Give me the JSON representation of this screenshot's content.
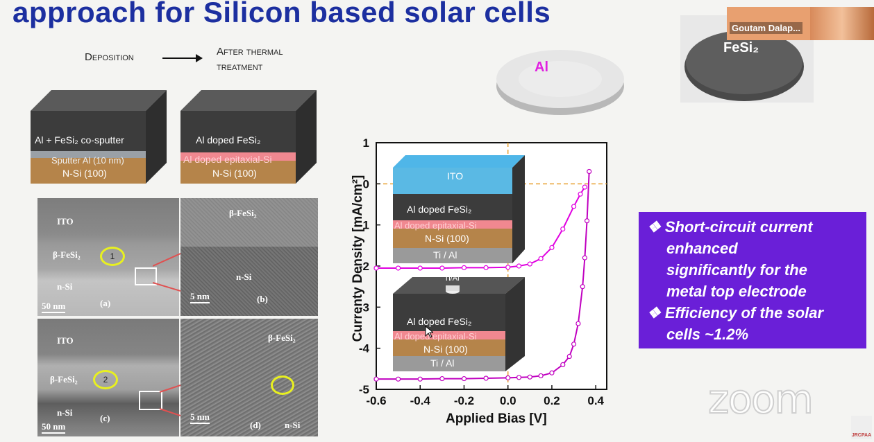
{
  "slide": {
    "title": "approach for Silicon based solar cells",
    "flow": {
      "deposition": "Deposition",
      "after_line1": "After thermal",
      "after_line2": "treatment"
    },
    "stack_left": {
      "top": "Al + FeSi₂ co-sputter",
      "mid": "Sputter Al (10 nm)",
      "bottom": "N-Si (100)"
    },
    "stack_right": {
      "top": "Al doped FeSi₂",
      "mid": "Al doped epitaxial-Si",
      "bottom": "N-Si (100)"
    },
    "targets": {
      "al": "Al",
      "fesi2": "FeSi₂"
    },
    "tem": {
      "a": {
        "ito": "ITO",
        "fesi": "β-FeSi₂",
        "nsi": "n-Si",
        "scale": "50 nm",
        "panel": "(a)",
        "circle": "1"
      },
      "b": {
        "fesi": "β-FeSi₂",
        "nsi": "n-Si",
        "scale": "5 nm",
        "panel": "(b)"
      },
      "c": {
        "ito": "ITO",
        "fesi": "β-FeSi₂",
        "nsi": "n-Si",
        "scale": "50 nm",
        "panel": "(c)",
        "circle": "2"
      },
      "d": {
        "fesi": "β-FeSi₂",
        "nsi": "n-Si",
        "scale": "5 nm",
        "panel": "(d)"
      }
    },
    "inset1": {
      "ito": "ITO",
      "fesi": "Al doped FeSi₂",
      "epi": "Al doped epitaxial-Si",
      "nsi": "N-Si (100)",
      "back": "Ti / Al"
    },
    "inset2": {
      "top_contact": "Ti/Al",
      "fesi": "Al doped FeSi₂",
      "epi": "Al doped epitaxial-Si",
      "nsi": "N-Si (100)",
      "back": "Ti / Al"
    },
    "info": {
      "bullet1_l1": "❖ Short-circuit   current",
      "bullet1_l2": "enhanced",
      "bullet1_l3": "significantly   for   the",
      "bullet1_l4": "metal top electrode",
      "bullet2_l1": "❖ Efficiency of the solar",
      "bullet2_l2": "cells ~1.2%"
    }
  },
  "zoom": {
    "participant_name": "Goutam Dalap...",
    "watermark": "zoom",
    "corner_logo": "JRCPAA"
  },
  "chart_data": {
    "type": "line",
    "xlabel": "Applied Bias [V]",
    "ylabel": "Currenty Density [mA/cm²]",
    "xlim": [
      -0.6,
      0.45
    ],
    "ylim": [
      -5,
      1
    ],
    "xticks": [
      "-0.6",
      "-0.4",
      "-0.2",
      "0.0",
      "0.2",
      "0.4"
    ],
    "yticks": [
      "1",
      "0",
      "-1",
      "-2",
      "-3",
      "-4",
      "-5"
    ],
    "reference_lines": {
      "x": 0,
      "y": 0
    },
    "series": [
      {
        "color": "#e000e0",
        "x": [
          -0.6,
          -0.5,
          -0.4,
          -0.3,
          -0.2,
          -0.1,
          0.0,
          0.05,
          0.1,
          0.15,
          0.2,
          0.25,
          0.3,
          0.33,
          0.35
        ],
        "y": [
          -2.05,
          -2.05,
          -2.05,
          -2.05,
          -2.04,
          -2.04,
          -2.03,
          -2.0,
          -1.95,
          -1.82,
          -1.55,
          -1.1,
          -0.55,
          -0.25,
          -0.08
        ]
      },
      {
        "color": "#c000c0",
        "x": [
          -0.6,
          -0.5,
          -0.4,
          -0.3,
          -0.2,
          -0.1,
          0.0,
          0.05,
          0.1,
          0.15,
          0.2,
          0.25,
          0.28,
          0.3,
          0.32,
          0.34,
          0.35,
          0.36,
          0.37
        ],
        "y": [
          -4.75,
          -4.75,
          -4.75,
          -4.74,
          -4.74,
          -4.73,
          -4.72,
          -4.71,
          -4.7,
          -4.67,
          -4.6,
          -4.4,
          -4.2,
          -3.9,
          -3.4,
          -2.5,
          -1.8,
          -0.9,
          0.3
        ]
      }
    ]
  }
}
